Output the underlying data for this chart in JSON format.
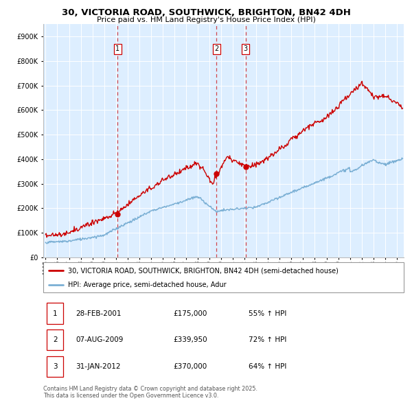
{
  "title": "30, VICTORIA ROAD, SOUTHWICK, BRIGHTON, BN42 4DH",
  "subtitle": "Price paid vs. HM Land Registry's House Price Index (HPI)",
  "legend_line1": "30, VICTORIA ROAD, SOUTHWICK, BRIGHTON, BN42 4DH (semi-detached house)",
  "legend_line2": "HPI: Average price, semi-detached house, Adur",
  "footer": "Contains HM Land Registry data © Crown copyright and database right 2025.\nThis data is licensed under the Open Government Licence v3.0.",
  "sale_color": "#cc0000",
  "hpi_color": "#7aafd4",
  "vline_color": "#cc0000",
  "background_color": "#ddeeff",
  "ylim": [
    0,
    950000
  ],
  "yticks": [
    0,
    100000,
    200000,
    300000,
    400000,
    500000,
    600000,
    700000,
    800000,
    900000
  ],
  "sales": [
    {
      "date": 2001.16,
      "price": 175000,
      "label": "1"
    },
    {
      "date": 2009.59,
      "price": 339950,
      "label": "2"
    },
    {
      "date": 2012.08,
      "price": 370000,
      "label": "3"
    }
  ],
  "vline_dates": [
    2001.16,
    2009.59,
    2012.08
  ],
  "table_data": [
    [
      "1",
      "28-FEB-2001",
      "£175,000",
      "55% ↑ HPI"
    ],
    [
      "2",
      "07-AUG-2009",
      "£339,950",
      "72% ↑ HPI"
    ],
    [
      "3",
      "31-JAN-2012",
      "£370,000",
      "64% ↑ HPI"
    ]
  ],
  "xmin": 1994.8,
  "xmax": 2025.6
}
